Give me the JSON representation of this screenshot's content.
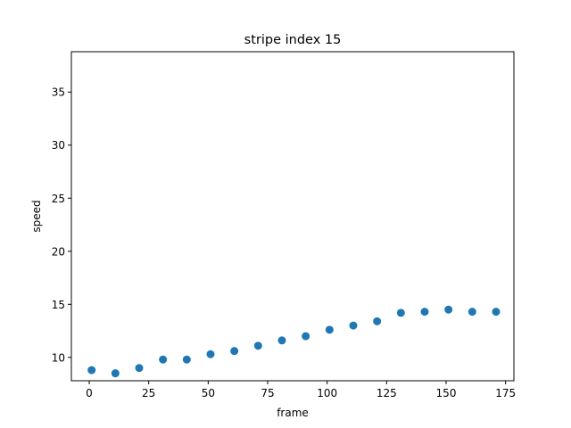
{
  "chart_data": {
    "type": "scatter",
    "title": "stripe index 15",
    "xlabel": "frame",
    "ylabel": "speed",
    "xlim": [
      -7.5,
      178.5
    ],
    "ylim": [
      7.8,
      38.8
    ],
    "xticks": [
      0,
      25,
      50,
      75,
      100,
      125,
      150,
      175
    ],
    "yticks": [
      10,
      15,
      20,
      25,
      30,
      35
    ],
    "grid": false,
    "marker_color": "#1f77b4",
    "series": [
      {
        "x": [
          1,
          11,
          21,
          31,
          41,
          51,
          61,
          71,
          81,
          91,
          101,
          111,
          121,
          131,
          141,
          151,
          161,
          171
        ],
        "y": [
          8.8,
          8.5,
          9.0,
          9.8,
          9.8,
          10.3,
          10.6,
          11.1,
          11.6,
          12.0,
          12.6,
          13.0,
          13.4,
          14.2,
          14.3,
          14.5,
          14.3,
          14.3
        ]
      }
    ]
  }
}
